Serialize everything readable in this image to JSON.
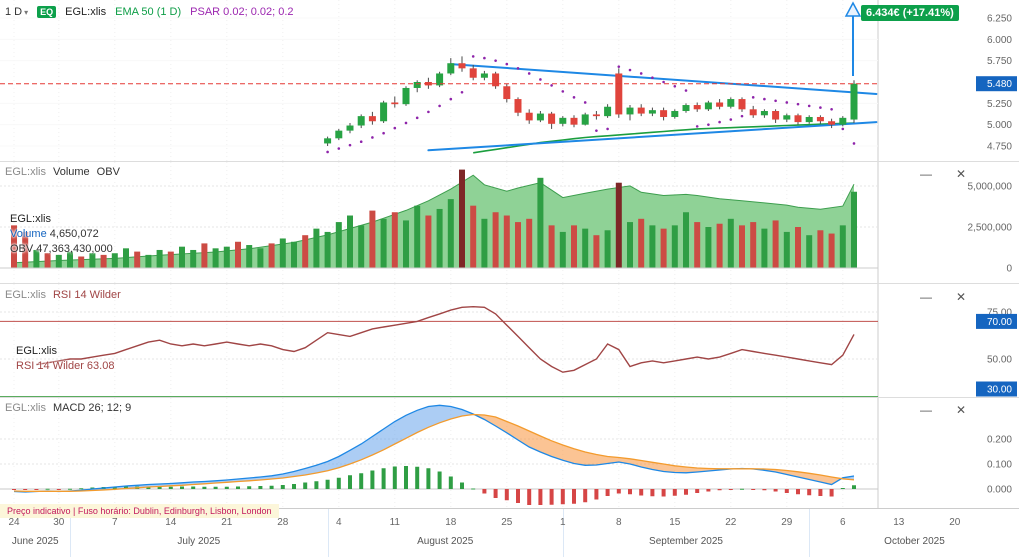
{
  "toolbar": {
    "timeframe": "1 D",
    "instrument_type": "EQ",
    "symbol": "EGL:xlis",
    "ema_label": "EMA 50 (1 D)",
    "psar_label": "PSAR 0.02; 0.02; 0.2"
  },
  "icons": {
    "chevron_down": "▾",
    "minimize": "—",
    "close": "✕"
  },
  "price_panel_ui": {
    "current_price": "6.434€",
    "current_change": "(+17.41%)"
  },
  "volume_panel_ui": {
    "symbol": "EGL:xlis",
    "title_volume": "Volume",
    "title_obv": "OBV",
    "legend_symbol": "EGL:xlis",
    "volume_label": "Volume",
    "volume_value": "4,650,072",
    "obv_label": "OBV",
    "obv_value": "47,363,430,000"
  },
  "rsi_panel_ui": {
    "symbol": "EGL:xlis",
    "title": "RSI 14 Wilder",
    "legend_symbol": "EGL:xlis",
    "legend_text": "RSI 14 Wilder 63.08"
  },
  "macd_panel_ui": {
    "symbol": "EGL:xlis",
    "title": "MACD 26; 12; 9"
  },
  "footer": {
    "notice": "Preço indicativo | Fuso horário: Dublin, Edinburgh, Lisbon, London"
  },
  "time_axis": {
    "day_ticks": [
      {
        "i": 0,
        "label": "24"
      },
      {
        "i": 4,
        "label": "30"
      },
      {
        "i": 9,
        "label": "7"
      },
      {
        "i": 14,
        "label": "14"
      },
      {
        "i": 19,
        "label": "21"
      },
      {
        "i": 24,
        "label": "28"
      },
      {
        "i": 29,
        "label": "4"
      },
      {
        "i": 34,
        "label": "11"
      },
      {
        "i": 39,
        "label": "18"
      },
      {
        "i": 44,
        "label": "25"
      },
      {
        "i": 49,
        "label": "1"
      },
      {
        "i": 54,
        "label": "8"
      },
      {
        "i": 59,
        "label": "15"
      },
      {
        "i": 64,
        "label": "22"
      },
      {
        "i": 69,
        "label": "29"
      },
      {
        "i": 74,
        "label": "6"
      },
      {
        "i": 79,
        "label": "13"
      },
      {
        "i": 84,
        "label": "20"
      }
    ],
    "months": [
      {
        "label": "June 2025",
        "center_i": 1.9
      },
      {
        "label": "July 2025",
        "center_i": 16.5
      },
      {
        "label": "August 2025",
        "center_i": 38.5
      },
      {
        "label": "September 2025",
        "center_i": 60.0
      },
      {
        "label": "October 2025",
        "center_i": 80.4
      }
    ],
    "month_separators_i": [
      5,
      28,
      49,
      71
    ]
  },
  "chart_data": {
    "type": "multi-panel-stock",
    "symbol": "EGL:xlis",
    "price": {
      "type": "candlestick",
      "ylim": [
        4.6,
        6.35
      ],
      "y_ticks": [
        {
          "v": 6.25,
          "label": "6.250"
        },
        {
          "v": 6.0,
          "label": "6.000"
        },
        {
          "v": 5.75,
          "label": "5.750"
        },
        {
          "v": 5.25,
          "label": "5.250"
        },
        {
          "v": 5.0,
          "label": "5.000"
        },
        {
          "v": 4.75,
          "label": "4.750"
        }
      ],
      "prev_close": {
        "v": 5.48,
        "label": "5.480"
      },
      "current_price": 6.434,
      "current_change_pct": 17.41,
      "start_i": 28,
      "ohlc": [
        [
          4.78,
          4.86,
          4.75,
          4.84
        ],
        [
          4.84,
          4.95,
          4.82,
          4.93
        ],
        [
          4.93,
          5.02,
          4.9,
          4.99
        ],
        [
          4.99,
          5.12,
          4.96,
          5.1
        ],
        [
          5.1,
          5.15,
          5.0,
          5.04
        ],
        [
          5.04,
          5.28,
          5.02,
          5.26
        ],
        [
          5.26,
          5.33,
          5.2,
          5.24
        ],
        [
          5.24,
          5.45,
          5.22,
          5.43
        ],
        [
          5.43,
          5.52,
          5.38,
          5.5
        ],
        [
          5.5,
          5.55,
          5.42,
          5.46
        ],
        [
          5.46,
          5.62,
          5.44,
          5.6
        ],
        [
          5.6,
          5.78,
          5.58,
          5.72
        ],
        [
          5.72,
          5.8,
          5.62,
          5.66
        ],
        [
          5.66,
          5.7,
          5.52,
          5.55
        ],
        [
          5.55,
          5.63,
          5.52,
          5.6
        ],
        [
          5.6,
          5.62,
          5.42,
          5.45
        ],
        [
          5.45,
          5.48,
          5.26,
          5.3
        ],
        [
          5.3,
          5.32,
          5.1,
          5.14
        ],
        [
          5.14,
          5.18,
          5.01,
          5.05
        ],
        [
          5.05,
          5.16,
          5.03,
          5.13
        ],
        [
          5.13,
          5.15,
          4.95,
          5.01
        ],
        [
          5.01,
          5.1,
          4.98,
          5.08
        ],
        [
          5.08,
          5.11,
          4.97,
          5.0
        ],
        [
          5.0,
          5.14,
          4.99,
          5.12
        ],
        [
          5.12,
          5.16,
          5.06,
          5.1
        ],
        [
          5.1,
          5.24,
          5.08,
          5.21
        ],
        [
          5.6,
          5.66,
          5.08,
          5.12
        ],
        [
          5.12,
          5.23,
          5.05,
          5.2
        ],
        [
          5.2,
          5.24,
          5.1,
          5.13
        ],
        [
          5.13,
          5.2,
          5.1,
          5.17
        ],
        [
          5.17,
          5.2,
          5.05,
          5.09
        ],
        [
          5.09,
          5.18,
          5.07,
          5.16
        ],
        [
          5.16,
          5.25,
          5.14,
          5.23
        ],
        [
          5.23,
          5.26,
          5.15,
          5.18
        ],
        [
          5.18,
          5.28,
          5.16,
          5.26
        ],
        [
          5.26,
          5.3,
          5.18,
          5.21
        ],
        [
          5.21,
          5.32,
          5.19,
          5.3
        ],
        [
          5.3,
          5.32,
          5.15,
          5.18
        ],
        [
          5.18,
          5.22,
          5.08,
          5.11
        ],
        [
          5.11,
          5.18,
          5.08,
          5.16
        ],
        [
          5.16,
          5.18,
          5.02,
          5.06
        ],
        [
          5.06,
          5.13,
          5.03,
          5.11
        ],
        [
          5.11,
          5.13,
          5.0,
          5.03
        ],
        [
          5.03,
          5.11,
          5.01,
          5.09
        ],
        [
          5.09,
          5.11,
          5.01,
          5.04
        ],
        [
          5.04,
          5.07,
          4.96,
          5.0
        ],
        [
          5.0,
          5.1,
          4.98,
          5.08
        ],
        [
          5.06,
          5.52,
          5.02,
          5.48
        ]
      ],
      "psar": {
        "start_i": 28,
        "values": [
          4.68,
          4.72,
          4.76,
          4.8,
          4.85,
          4.9,
          4.96,
          5.02,
          5.08,
          5.15,
          5.22,
          5.3,
          5.38,
          5.8,
          5.78,
          5.75,
          5.71,
          5.66,
          5.6,
          5.53,
          5.46,
          5.39,
          5.32,
          5.26,
          4.93,
          4.95,
          5.68,
          5.64,
          5.6,
          5.55,
          5.5,
          5.45,
          5.4,
          4.98,
          5.0,
          5.03,
          5.06,
          5.1,
          5.32,
          5.3,
          5.28,
          5.26,
          5.24,
          5.22,
          5.2,
          5.18,
          4.95,
          4.78
        ]
      },
      "ema50": {
        "start_i": 41,
        "values": [
          4.67,
          4.69,
          4.71,
          4.73,
          4.75,
          4.77,
          4.79,
          4.805,
          4.82,
          4.835,
          4.85,
          4.86,
          4.87,
          4.88,
          4.89,
          4.9,
          4.91,
          4.92,
          4.93,
          4.94,
          4.95,
          4.955,
          4.96,
          4.965,
          4.97,
          4.975,
          4.98,
          4.985,
          4.99,
          4.995,
          5.0,
          5.005,
          5.01,
          5.015,
          5.02
        ]
      },
      "trendlines": [
        {
          "i1": 39,
          "v1": 5.71,
          "i2": 77,
          "v2": 5.36
        },
        {
          "i1": 37,
          "v1": 4.7,
          "i2": 77,
          "v2": 5.03
        }
      ]
    },
    "volume": {
      "type": "bar",
      "y_ticks": [
        {
          "v": 5,
          "label": "5,000,000"
        },
        {
          "v": 2.5,
          "label": "2,500,000"
        },
        {
          "v": 0,
          "label": "0"
        }
      ],
      "values_m": [
        2.6,
        2.2,
        1.1,
        0.9,
        0.8,
        1.0,
        0.7,
        0.9,
        0.8,
        0.9,
        1.2,
        1.0,
        0.8,
        1.1,
        1.0,
        1.3,
        1.1,
        1.5,
        1.2,
        1.3,
        1.6,
        1.4,
        1.2,
        1.5,
        1.8,
        1.6,
        2.0,
        2.4,
        2.2,
        2.8,
        3.2,
        2.6,
        3.5,
        3.0,
        3.4,
        2.9,
        3.8,
        3.2,
        3.6,
        4.2,
        6.0,
        3.8,
        3.0,
        3.4,
        3.2,
        2.8,
        3.0,
        5.5,
        2.6,
        2.2,
        2.6,
        2.4,
        2.0,
        2.3,
        5.2,
        2.8,
        3.0,
        2.6,
        2.4,
        2.6,
        3.4,
        2.8,
        2.5,
        2.7,
        3.0,
        2.6,
        2.8,
        2.4,
        2.9,
        2.2,
        2.5,
        2.0,
        2.3,
        2.1,
        2.6,
        4.65
      ],
      "dir": [
        -1,
        -1,
        1,
        -1,
        1,
        1,
        -1,
        1,
        -1,
        1,
        1,
        -1,
        1,
        1,
        -1,
        1,
        1,
        -1,
        1,
        1,
        -1,
        1,
        1,
        -1,
        1,
        1,
        -1,
        1,
        1,
        1,
        1,
        1,
        -1,
        1,
        -1,
        1,
        1,
        -1,
        1,
        1,
        -1,
        -1,
        1,
        -1,
        -1,
        -1,
        -1,
        1,
        -1,
        1,
        -1,
        1,
        -1,
        1,
        -1,
        1,
        -1,
        1,
        -1,
        1,
        1,
        -1,
        1,
        -1,
        1,
        -1,
        -1,
        1,
        -1,
        1,
        -1,
        1,
        -1,
        -1,
        1,
        1
      ],
      "obv_range_b": [
        39.5,
        48.5
      ],
      "obv_points": [
        [
          0,
          40.0
        ],
        [
          4,
          40.2
        ],
        [
          9,
          40.4
        ],
        [
          13,
          40.7
        ],
        [
          18,
          41.0
        ],
        [
          21,
          41.3
        ],
        [
          25,
          41.9
        ],
        [
          28,
          42.6
        ],
        [
          32,
          43.8
        ],
        [
          35,
          44.9
        ],
        [
          37,
          45.8
        ],
        [
          39,
          46.9
        ],
        [
          41,
          48.2
        ],
        [
          42,
          47.3
        ],
        [
          44,
          46.7
        ],
        [
          45,
          47.0
        ],
        [
          47,
          47.5
        ],
        [
          48,
          46.8
        ],
        [
          49,
          46.1
        ],
        [
          51,
          46.5
        ],
        [
          53,
          46.9
        ],
        [
          55,
          47.2
        ],
        [
          56,
          46.6
        ],
        [
          58,
          46.3
        ],
        [
          60,
          46.4
        ],
        [
          61,
          46.3
        ],
        [
          63,
          46.0
        ],
        [
          65,
          45.8
        ],
        [
          67,
          45.6
        ],
        [
          69,
          45.4
        ],
        [
          70,
          45.2
        ],
        [
          72,
          45.0
        ],
        [
          74,
          45.3
        ],
        [
          75,
          47.36
        ]
      ]
    },
    "rsi": {
      "type": "line",
      "period_label": "RSI 14 Wilder",
      "current": 63.08,
      "levels": {
        "overbought": 70,
        "oversold": 30
      },
      "y_ticks": [
        {
          "v": 75,
          "label": "75.00"
        },
        {
          "v": 50,
          "label": "50.00"
        }
      ],
      "badges": [
        {
          "v": 70,
          "label": "70.00"
        },
        {
          "v": 30,
          "label": "30.00"
        }
      ],
      "start_i": 2,
      "values": [
        47,
        48,
        49,
        50,
        50,
        51,
        52,
        53,
        55,
        57,
        59,
        60,
        58,
        57,
        58,
        57,
        58,
        59,
        58,
        57,
        58,
        57,
        55,
        54,
        56,
        60,
        64,
        63,
        62,
        64,
        66,
        67,
        68,
        69,
        70,
        72,
        74,
        76,
        77.5,
        77.8,
        77.5,
        74,
        68,
        62,
        56,
        50,
        46,
        43,
        44,
        47,
        50,
        58,
        55,
        46,
        48,
        49,
        48,
        49,
        50,
        51,
        50,
        51,
        53,
        55,
        54,
        53,
        52,
        51,
        50,
        49,
        48,
        47,
        52,
        63.08
      ]
    },
    "macd": {
      "type": "macd",
      "params": "26; 12; 9",
      "y_ticks": [
        {
          "v": 0.2,
          "label": "0.200"
        },
        {
          "v": 0.1,
          "label": "0.100"
        },
        {
          "v": 0,
          "label": "0.000"
        }
      ],
      "macd": [
        -0.01,
        -0.012,
        -0.01,
        -0.008,
        -0.01,
        -0.008,
        -0.005,
        0.0,
        0.004,
        0.008,
        0.012,
        0.015,
        0.018,
        0.02,
        0.022,
        0.025,
        0.028,
        0.03,
        0.033,
        0.036,
        0.04,
        0.044,
        0.048,
        0.053,
        0.06,
        0.07,
        0.082,
        0.095,
        0.11,
        0.13,
        0.155,
        0.18,
        0.21,
        0.24,
        0.27,
        0.295,
        0.315,
        0.33,
        0.335,
        0.33,
        0.318,
        0.3,
        0.278,
        0.252,
        0.225,
        0.196,
        0.168,
        0.148,
        0.13,
        0.115,
        0.102,
        0.095,
        0.096,
        0.102,
        0.108,
        0.1,
        0.088,
        0.078,
        0.07,
        0.066,
        0.065,
        0.068,
        0.072,
        0.076,
        0.08,
        0.082,
        0.08,
        0.075,
        0.068,
        0.058,
        0.048,
        0.038,
        0.028,
        0.018,
        0.045,
        0.052
      ],
      "signal": [
        -0.008,
        -0.009,
        -0.009,
        -0.009,
        -0.009,
        -0.009,
        -0.008,
        -0.006,
        -0.004,
        -0.001,
        0.002,
        0.005,
        0.008,
        0.01,
        0.013,
        0.015,
        0.018,
        0.021,
        0.024,
        0.027,
        0.03,
        0.033,
        0.036,
        0.04,
        0.044,
        0.05,
        0.056,
        0.064,
        0.073,
        0.085,
        0.1,
        0.117,
        0.136,
        0.157,
        0.18,
        0.203,
        0.226,
        0.247,
        0.265,
        0.28,
        0.292,
        0.298,
        0.296,
        0.288,
        0.27,
        0.252,
        0.232,
        0.212,
        0.193,
        0.176,
        0.161,
        0.148,
        0.138,
        0.13,
        0.126,
        0.121,
        0.114,
        0.107,
        0.1,
        0.093,
        0.088,
        0.084,
        0.082,
        0.081,
        0.081,
        0.081,
        0.081,
        0.08,
        0.078,
        0.074,
        0.069,
        0.063,
        0.056,
        0.048,
        0.041,
        0.037
      ]
    },
    "colors": {
      "up": "#27a344",
      "down": "#e0443c",
      "accent_blue": "#1e88e5",
      "badge_blue": "#1565c0",
      "badge_green": "#0da04b",
      "psar_purple": "#8e24aa",
      "rsi_line": "#a04545",
      "signal_orange": "#f39b2d",
      "obv_fill": "#8fd296"
    }
  }
}
